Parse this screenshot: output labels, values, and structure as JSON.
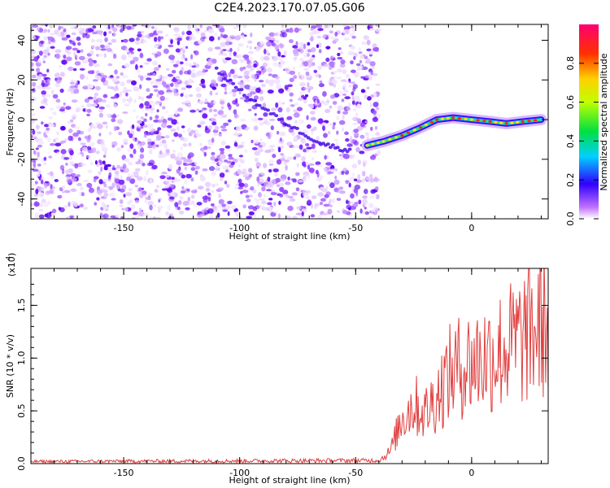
{
  "title": "C2E4.2023.170.07.05.G06",
  "chart_data": [
    {
      "type": "heatmap",
      "xlabel": "Height of straight line (km)",
      "ylabel": "Frequency (Hz)",
      "xlim": [
        -190,
        33
      ],
      "ylim": [
        -50,
        48
      ],
      "x_ticks": [
        "-150",
        "-100",
        "-50",
        "0"
      ],
      "y_ticks": [
        "-40",
        "-20",
        "0",
        "20",
        "40"
      ],
      "noise_region_x": [
        -190,
        -40
      ],
      "signal_track": [
        {
          "x": -45,
          "y": -13
        },
        {
          "x": -38,
          "y": -11
        },
        {
          "x": -30,
          "y": -8
        },
        {
          "x": -22,
          "y": -4
        },
        {
          "x": -15,
          "y": 0
        },
        {
          "x": -8,
          "y": 1
        },
        {
          "x": 0,
          "y": 0
        },
        {
          "x": 8,
          "y": -1
        },
        {
          "x": 15,
          "y": -2
        },
        {
          "x": 22,
          "y": -1
        },
        {
          "x": 30,
          "y": 0
        }
      ],
      "faint_trace": [
        {
          "x": -110,
          "y": 25
        },
        {
          "x": -95,
          "y": 10
        },
        {
          "x": -80,
          "y": -2
        },
        {
          "x": -65,
          "y": -12
        },
        {
          "x": -52,
          "y": -16
        }
      ],
      "colorbar": {
        "label": "Normalized spectral amplitude",
        "range": [
          0.0,
          1.0
        ],
        "ticks": [
          "0.0",
          "0.2",
          "0.4",
          "0.6",
          "0.8"
        ],
        "colormap": "rainbow (white-purple-blue-cyan-green-yellow-red-magenta)"
      }
    },
    {
      "type": "line",
      "xlabel": "Height of straight line (km)",
      "ylabel": "SNR (10 * v/v)",
      "y_multiplier": "(x10",
      "y_multiplier_exp": "4",
      "y_multiplier_close": ")",
      "xlim": [
        -190,
        33
      ],
      "ylim": [
        0,
        1.85
      ],
      "x_ticks": [
        "-150",
        "-100",
        "-50",
        "0"
      ],
      "y_ticks": [
        "0.0",
        "0.5",
        "1.0",
        "1.5"
      ],
      "color": "#e04040",
      "envelope": [
        {
          "x": -190,
          "y": 0.02
        },
        {
          "x": -40,
          "y": 0.03
        },
        {
          "x": -35,
          "y": 0.15
        },
        {
          "x": -30,
          "y": 0.55
        },
        {
          "x": -25,
          "y": 0.7
        },
        {
          "x": -20,
          "y": 0.6
        },
        {
          "x": -15,
          "y": 0.8
        },
        {
          "x": -10,
          "y": 1.05
        },
        {
          "x": -5,
          "y": 1.15
        },
        {
          "x": 0,
          "y": 1.2
        },
        {
          "x": 10,
          "y": 1.3
        },
        {
          "x": 20,
          "y": 1.45
        },
        {
          "x": 28,
          "y": 1.6
        },
        {
          "x": 33,
          "y": 1.7
        }
      ]
    }
  ]
}
